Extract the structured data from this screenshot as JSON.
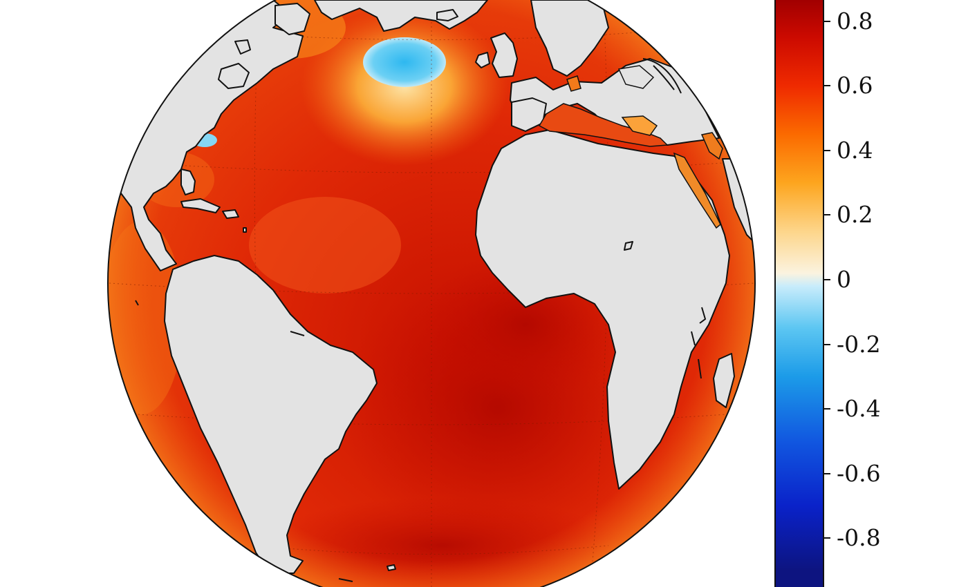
{
  "map": {
    "projection": "orthographic",
    "region": "Atlantic Ocean",
    "land_color": "#e3e3e3",
    "coastline_color": "#111111",
    "ocean_base_color": "#d9240a",
    "colormap": "diverging blue-white-red"
  },
  "colorbar": {
    "range": [
      -0.9,
      0.9
    ],
    "ticks": [
      "0.8",
      "0.6",
      "0.4",
      "0.2",
      "0",
      "-0.2",
      "-0.4",
      "-0.6",
      "-0.8"
    ],
    "tick_values": [
      0.8,
      0.6,
      0.4,
      0.2,
      0,
      -0.2,
      -0.4,
      -0.6,
      -0.8
    ],
    "stops": [
      {
        "value": 0.9,
        "color": "#a10000"
      },
      {
        "value": 0.75,
        "color": "#cc0a00"
      },
      {
        "value": 0.6,
        "color": "#ef2a00"
      },
      {
        "value": 0.45,
        "color": "#fb6a00"
      },
      {
        "value": 0.3,
        "color": "#fda51e"
      },
      {
        "value": 0.15,
        "color": "#fdd58a"
      },
      {
        "value": 0.02,
        "color": "#fbf3df"
      },
      {
        "value": -0.02,
        "color": "#c8ecfb"
      },
      {
        "value": -0.15,
        "color": "#5cc6f2"
      },
      {
        "value": -0.3,
        "color": "#1c9be8"
      },
      {
        "value": -0.5,
        "color": "#1157e0"
      },
      {
        "value": -0.7,
        "color": "#0a22c9"
      },
      {
        "value": -0.9,
        "color": "#0d1480"
      }
    ]
  },
  "features": {
    "anomaly_patches": [
      {
        "name": "subpolar-gyre-cold-patch",
        "value": -0.2,
        "color": "#38c0f2"
      },
      {
        "name": "gulf-of-maine-cold-patch",
        "value": -0.1,
        "color": "#7fd6f5"
      },
      {
        "name": "south-atlantic-warm-core",
        "value": 0.85,
        "color": "#b80800"
      }
    ]
  }
}
